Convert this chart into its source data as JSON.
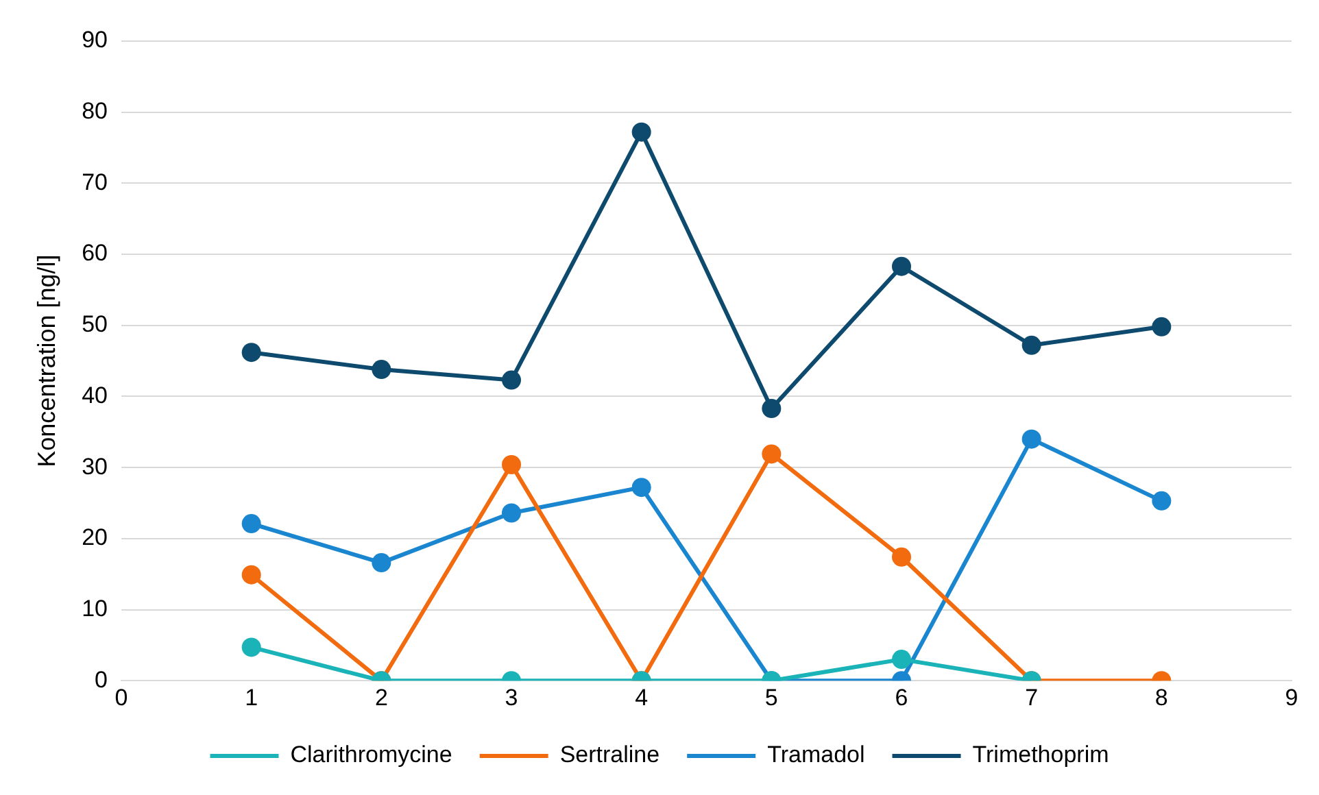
{
  "chart_data": {
    "type": "line",
    "ylabel": "Koncentration [ng/l]",
    "x": [
      1,
      2,
      3,
      4,
      5,
      6,
      7,
      8
    ],
    "xlim": [
      0,
      9
    ],
    "xticks": [
      0,
      1,
      2,
      3,
      4,
      5,
      6,
      7,
      8,
      9
    ],
    "ylim": [
      0,
      90
    ],
    "yticks": [
      0,
      10,
      20,
      30,
      40,
      50,
      60,
      70,
      80,
      90
    ],
    "grid": "y",
    "legend": "bottom",
    "marker": "circle",
    "line_style": "solid",
    "series": [
      {
        "name": "Clarithromycine",
        "color": "#1ab3b8",
        "values": [
          4.7,
          0,
          0,
          0,
          0,
          3.0,
          0,
          null
        ]
      },
      {
        "name": "Sertraline",
        "color": "#f26b0f",
        "values": [
          14.9,
          0,
          30.4,
          0,
          31.9,
          17.4,
          0,
          0
        ]
      },
      {
        "name": "Tramadol",
        "color": "#1a86d0",
        "values": [
          22.1,
          16.6,
          23.6,
          27.2,
          0,
          0,
          34.0,
          25.3
        ]
      },
      {
        "name": "Trimethoprim",
        "color": "#0e4a6e",
        "values": [
          46.2,
          43.8,
          42.3,
          77.2,
          38.3,
          58.3,
          47.2,
          49.8
        ]
      }
    ]
  }
}
